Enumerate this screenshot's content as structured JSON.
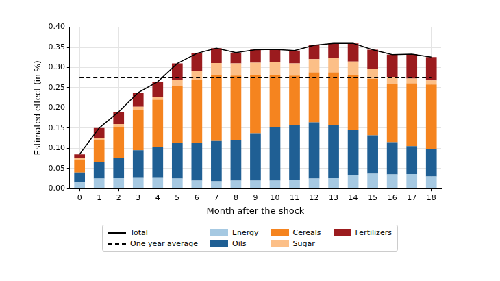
{
  "chart_data": {
    "type": "bar",
    "stacked": true,
    "grid": true,
    "legend": "bottom",
    "x_label": "Month after the shock",
    "y_label": "Estimated effect (in %)",
    "categories": [
      "0",
      "1",
      "2",
      "3",
      "4",
      "5",
      "6",
      "7",
      "8",
      "9",
      "10",
      "11",
      "12",
      "13",
      "14",
      "15",
      "16",
      "17",
      "18"
    ],
    "ylim": [
      0,
      0.4
    ],
    "yticks": [
      {
        "value": 0,
        "label": "0.00"
      },
      {
        "value": 0.05,
        "label": "0.05"
      },
      {
        "value": 0.1,
        "label": "0.10"
      },
      {
        "value": 0.15,
        "label": "0.15"
      },
      {
        "value": 0.2,
        "label": "0.20"
      },
      {
        "value": 0.25,
        "label": "0.25"
      },
      {
        "value": 0.3,
        "label": "0.30"
      },
      {
        "value": 0.35,
        "label": "0.35"
      },
      {
        "value": 0.4,
        "label": "0.40"
      }
    ],
    "series": [
      {
        "name": "Total",
        "type": "line",
        "line_style": "solid",
        "color": "#000000",
        "values": [
          0.085,
          0.15,
          0.19,
          0.238,
          0.265,
          0.31,
          0.335,
          0.348,
          0.337,
          0.344,
          0.345,
          0.342,
          0.355,
          0.36,
          0.36,
          0.344,
          0.332,
          0.333,
          0.326
        ]
      },
      {
        "name": "One year average",
        "type": "line",
        "line_style": "dashed",
        "color": "#000000",
        "values": [
          0.275,
          0.275,
          0.275,
          0.275,
          0.275,
          0.275,
          0.275,
          0.275,
          0.275,
          0.275,
          0.275,
          0.275,
          0.275,
          0.275,
          0.275,
          0.275,
          0.275,
          0.275,
          0.275
        ]
      },
      {
        "name": "Energy",
        "type": "bar",
        "color": "#a6c9e2",
        "values": [
          0.015,
          0.025,
          0.027,
          0.028,
          0.028,
          0.025,
          0.02,
          0.018,
          0.02,
          0.02,
          0.02,
          0.022,
          0.025,
          0.027,
          0.033,
          0.037,
          0.035,
          0.036,
          0.03
        ]
      },
      {
        "name": "Oils",
        "type": "bar",
        "color": "#1f5f94",
        "values": [
          0.025,
          0.04,
          0.048,
          0.067,
          0.075,
          0.088,
          0.093,
          0.1,
          0.1,
          0.117,
          0.132,
          0.136,
          0.139,
          0.13,
          0.112,
          0.095,
          0.08,
          0.069,
          0.068
        ]
      },
      {
        "name": "Cereals",
        "type": "bar",
        "color": "#f5841f",
        "values": [
          0.03,
          0.055,
          0.078,
          0.1,
          0.117,
          0.142,
          0.157,
          0.163,
          0.16,
          0.145,
          0.13,
          0.122,
          0.124,
          0.131,
          0.137,
          0.14,
          0.145,
          0.156,
          0.16
        ]
      },
      {
        "name": "Sugar",
        "type": "bar",
        "color": "#fcbf87",
        "values": [
          0.005,
          0.005,
          0.007,
          0.008,
          0.008,
          0.015,
          0.022,
          0.03,
          0.03,
          0.03,
          0.032,
          0.03,
          0.033,
          0.035,
          0.033,
          0.024,
          0.017,
          0.012,
          0.01
        ]
      },
      {
        "name": "Fertilizers",
        "type": "bar",
        "color": "#9b1b1e",
        "values": [
          0.01,
          0.025,
          0.03,
          0.035,
          0.037,
          0.04,
          0.043,
          0.037,
          0.027,
          0.032,
          0.031,
          0.032,
          0.034,
          0.037,
          0.045,
          0.048,
          0.055,
          0.06,
          0.058
        ]
      }
    ]
  }
}
